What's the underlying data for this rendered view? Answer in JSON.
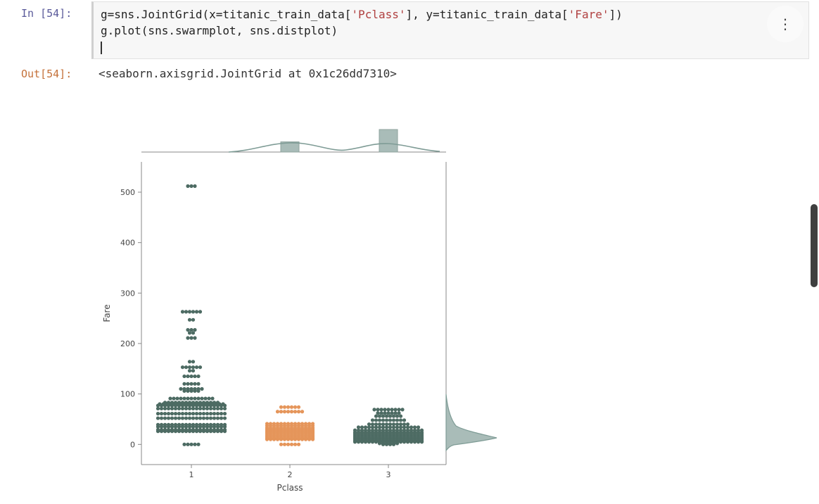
{
  "input_cell": {
    "prompt": "In [54]:",
    "line1_parts": [
      "g=sns.JointGrid(x=titanic_train_data[",
      "'Pclass'",
      "], y=titanic_train_data[",
      "'Fare'",
      "])"
    ],
    "line2": "g.plot(sns.swarmplot, sns.distplot)",
    "menu_icon": "⋮"
  },
  "output_cell": {
    "prompt": "Out[54]:",
    "text": "<seaborn.axisgrid.JointGrid at 0x1c26dd7310>"
  },
  "chart_data": {
    "type": "scatter",
    "subtype": "swarm with marginal histograms",
    "xlabel": "Pclass",
    "ylabel": "Fare",
    "categories": [
      "1",
      "2",
      "3"
    ],
    "ylim": [
      -40,
      560
    ],
    "yticks": [
      0,
      100,
      200,
      300,
      400,
      500
    ],
    "colors": {
      "1": "#4d6b63",
      "2": "#e5955a",
      "3": "#4d6b63"
    },
    "series": [
      {
        "category": "1",
        "values": [
          512,
          512,
          512,
          263,
          263,
          263,
          263,
          263,
          263,
          247,
          247,
          227,
          227,
          227,
          221,
          221,
          211,
          211,
          211,
          164,
          164,
          153,
          153,
          153,
          153,
          153,
          153,
          146,
          146,
          135,
          135,
          135,
          135,
          135,
          120,
          120,
          120,
          120,
          120,
          110,
          110,
          110,
          110,
          110,
          110,
          110,
          106,
          106,
          106,
          106,
          106,
          91,
          91,
          91,
          91,
          91,
          91,
          91,
          91,
          91,
          91,
          91,
          91,
          91,
          83,
          83,
          83,
          83,
          83,
          83,
          83,
          83,
          83,
          83,
          83,
          83,
          83,
          83,
          83,
          83,
          80,
          80,
          80,
          80,
          80,
          80,
          80,
          80,
          80,
          80,
          80,
          80,
          80,
          80,
          80,
          80,
          80,
          80,
          80,
          77,
          77,
          77,
          77,
          77,
          77,
          77,
          77,
          77,
          77,
          77,
          77,
          77,
          77,
          77,
          77,
          77,
          77,
          77,
          77,
          71,
          71,
          71,
          71,
          71,
          71,
          71,
          71,
          71,
          71,
          71,
          71,
          71,
          71,
          71,
          71,
          71,
          71,
          71,
          71,
          61,
          61,
          61,
          61,
          61,
          61,
          61,
          61,
          61,
          61,
          61,
          61,
          61,
          61,
          61,
          61,
          61,
          61,
          61,
          61,
          52,
          52,
          52,
          52,
          52,
          52,
          52,
          52,
          52,
          52,
          52,
          52,
          52,
          52,
          52,
          52,
          52,
          52,
          52,
          52,
          39,
          39,
          39,
          39,
          39,
          39,
          39,
          39,
          39,
          39,
          39,
          39,
          39,
          39,
          39,
          39,
          39,
          39,
          39,
          39,
          35,
          35,
          35,
          35,
          35,
          35,
          35,
          35,
          35,
          35,
          35,
          35,
          35,
          35,
          35,
          35,
          35,
          35,
          35,
          35,
          29,
          29,
          29,
          29,
          29,
          29,
          29,
          29,
          29,
          29,
          29,
          29,
          29,
          29,
          29,
          29,
          29,
          29,
          29,
          29,
          26,
          26,
          26,
          26,
          26,
          26,
          26,
          26,
          26,
          26,
          26,
          26,
          26,
          26,
          26,
          26,
          26,
          26,
          26,
          26,
          0,
          0,
          0,
          0,
          0
        ]
      },
      {
        "category": "2",
        "values": [
          74,
          74,
          74,
          74,
          74,
          74,
          65,
          65,
          65,
          65,
          65,
          65,
          65,
          65,
          41,
          41,
          41,
          41,
          41,
          41,
          41,
          41,
          41,
          41,
          41,
          41,
          41,
          41,
          37,
          37,
          37,
          37,
          37,
          37,
          37,
          37,
          37,
          37,
          37,
          37,
          37,
          37,
          33,
          33,
          33,
          33,
          33,
          33,
          33,
          33,
          33,
          33,
          33,
          33,
          33,
          33,
          30,
          30,
          30,
          30,
          30,
          30,
          30,
          30,
          30,
          30,
          30,
          30,
          30,
          30,
          27,
          27,
          27,
          27,
          27,
          27,
          27,
          27,
          27,
          27,
          27,
          27,
          27,
          27,
          24,
          24,
          24,
          24,
          24,
          24,
          24,
          24,
          24,
          24,
          24,
          24,
          24,
          24,
          21,
          21,
          21,
          21,
          21,
          21,
          21,
          21,
          21,
          21,
          21,
          21,
          21,
          21,
          18,
          18,
          18,
          18,
          18,
          18,
          18,
          18,
          18,
          18,
          18,
          18,
          18,
          18,
          15,
          15,
          15,
          15,
          15,
          15,
          15,
          15,
          15,
          15,
          15,
          15,
          15,
          15,
          12,
          12,
          12,
          12,
          12,
          12,
          12,
          12,
          12,
          12,
          12,
          12,
          12,
          12,
          10,
          10,
          10,
          10,
          10,
          10,
          10,
          10,
          10,
          10,
          10,
          10,
          10,
          10,
          0,
          0,
          0,
          0,
          0,
          0
        ]
      },
      {
        "category": "3",
        "values": [
          69,
          69,
          69,
          69,
          69,
          69,
          69,
          69,
          69,
          62,
          62,
          62,
          62,
          62,
          62,
          62,
          56,
          56,
          56,
          56,
          56,
          56,
          56,
          56,
          48,
          48,
          48,
          48,
          48,
          48,
          48,
          48,
          48,
          48,
          40,
          40,
          40,
          40,
          40,
          40,
          40,
          40,
          40,
          40,
          40,
          40,
          34,
          34,
          34,
          34,
          34,
          34,
          34,
          34,
          34,
          34,
          34,
          34,
          34,
          34,
          34,
          34,
          34,
          34,
          28,
          28,
          28,
          28,
          28,
          28,
          28,
          28,
          28,
          28,
          28,
          28,
          28,
          28,
          28,
          28,
          28,
          28,
          28,
          28,
          24,
          24,
          24,
          24,
          24,
          24,
          24,
          24,
          24,
          24,
          24,
          24,
          24,
          24,
          24,
          24,
          24,
          24,
          24,
          24,
          21,
          21,
          21,
          21,
          21,
          21,
          21,
          21,
          21,
          21,
          21,
          21,
          21,
          21,
          21,
          21,
          21,
          21,
          21,
          21,
          18,
          18,
          18,
          18,
          18,
          18,
          18,
          18,
          18,
          18,
          18,
          18,
          18,
          18,
          18,
          18,
          18,
          18,
          18,
          18,
          15,
          15,
          15,
          15,
          15,
          15,
          15,
          15,
          15,
          15,
          15,
          15,
          15,
          15,
          15,
          15,
          15,
          15,
          15,
          15,
          12,
          12,
          12,
          12,
          12,
          12,
          12,
          12,
          12,
          12,
          12,
          12,
          12,
          12,
          12,
          12,
          12,
          12,
          12,
          12,
          9,
          9,
          9,
          9,
          9,
          9,
          9,
          9,
          9,
          9,
          9,
          9,
          9,
          9,
          9,
          9,
          9,
          9,
          9,
          9,
          7,
          7,
          7,
          7,
          7,
          7,
          7,
          7,
          7,
          7,
          7,
          7,
          7,
          7,
          7,
          7,
          7,
          7,
          7,
          7,
          5,
          5,
          5,
          5,
          5,
          5,
          5,
          5,
          5,
          5,
          5,
          5,
          5,
          5,
          5,
          5,
          5,
          5,
          5,
          5,
          2,
          2,
          2,
          2,
          2,
          2,
          0,
          0,
          0,
          0
        ]
      }
    ],
    "marginal_x": {
      "categories": [
        "1",
        "2",
        "3"
      ],
      "counts": [
        0,
        184,
        491
      ]
    },
    "marginal_y": {
      "note_color": "#7f9c96"
    }
  }
}
